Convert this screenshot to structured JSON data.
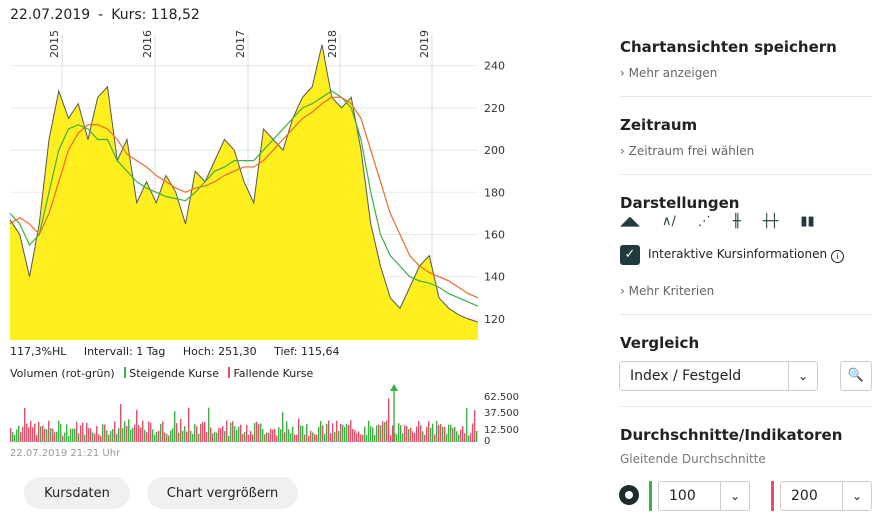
{
  "header": {
    "date": "22.07.2019",
    "separator": "-",
    "price": "Kurs: 118,52"
  },
  "stats": {
    "hl": "117,3%HL",
    "interval": "Intervall: 1 Tag",
    "high": "Hoch:  251,30",
    "low": "Tief:  115,64"
  },
  "volume": {
    "title": "Volumen (rot-grün)",
    "rising": "Steigende Kurse",
    "falling": "Fallende Kurse",
    "up_color": "#3cb043",
    "down_color": "#e0506a"
  },
  "timestamp": "22.07.2019 21:21 Uhr",
  "buttons": {
    "kursdaten": "Kursdaten",
    "enlarge": "Chart vergrößern"
  },
  "panel": {
    "saved_views": "Chartansichten speichern",
    "more": "Mehr anzeigen",
    "range": "Zeitraum",
    "range_link": "Zeitraum frei wählen",
    "display": "Darstellungen",
    "display_icons": [
      "mountain-icon",
      "line-icon",
      "dots-icon",
      "ohlc-icon",
      "bars-icon",
      "candles-icon"
    ],
    "interactive": "Interaktive Kursinformationen",
    "more_criteria": "Mehr Kriterien",
    "compare": "Vergleich",
    "compare_value": "Index / Festgeld",
    "averages": "Durchschnitte/Indikatoren",
    "moving": "Gleitende Durchschnitte",
    "ma1": "100",
    "ma2": "200",
    "ma1_color": "#3cb043",
    "ma2_color": "#e0506a"
  },
  "chart_data": {
    "type": "area",
    "years": [
      "2015",
      "2016",
      "2017",
      "2018",
      "2019"
    ],
    "y_ticks": [
      120,
      140,
      160,
      180,
      200,
      220,
      240
    ],
    "ylim": [
      110,
      255
    ],
    "vol_ticks": [
      "62.500",
      "37.500",
      "12.500",
      "0"
    ],
    "area_color": "#ffef1f",
    "price": [
      167,
      160,
      140,
      165,
      205,
      228,
      215,
      222,
      205,
      225,
      230,
      195,
      205,
      175,
      185,
      175,
      188,
      180,
      165,
      190,
      185,
      195,
      205,
      200,
      185,
      175,
      210,
      205,
      200,
      215,
      225,
      230,
      250,
      225,
      220,
      225,
      200,
      165,
      145,
      130,
      125,
      135,
      145,
      150,
      130,
      125,
      122,
      120,
      118.5
    ],
    "ma100": [
      170,
      165,
      155,
      160,
      180,
      200,
      210,
      212,
      210,
      205,
      205,
      195,
      190,
      185,
      182,
      180,
      178,
      177,
      176,
      180,
      185,
      190,
      192,
      195,
      195,
      195,
      200,
      205,
      210,
      215,
      220,
      222,
      225,
      228,
      225,
      220,
      205,
      180,
      160,
      150,
      145,
      140,
      138,
      137,
      135,
      132,
      130,
      128,
      126
    ],
    "ma200": [
      165,
      168,
      165,
      160,
      170,
      185,
      200,
      208,
      212,
      212,
      210,
      205,
      198,
      195,
      192,
      188,
      185,
      182,
      180,
      182,
      183,
      185,
      188,
      190,
      192,
      192,
      195,
      200,
      205,
      210,
      215,
      218,
      222,
      225,
      225,
      222,
      215,
      200,
      185,
      170,
      160,
      150,
      145,
      142,
      140,
      138,
      135,
      132,
      130
    ]
  }
}
